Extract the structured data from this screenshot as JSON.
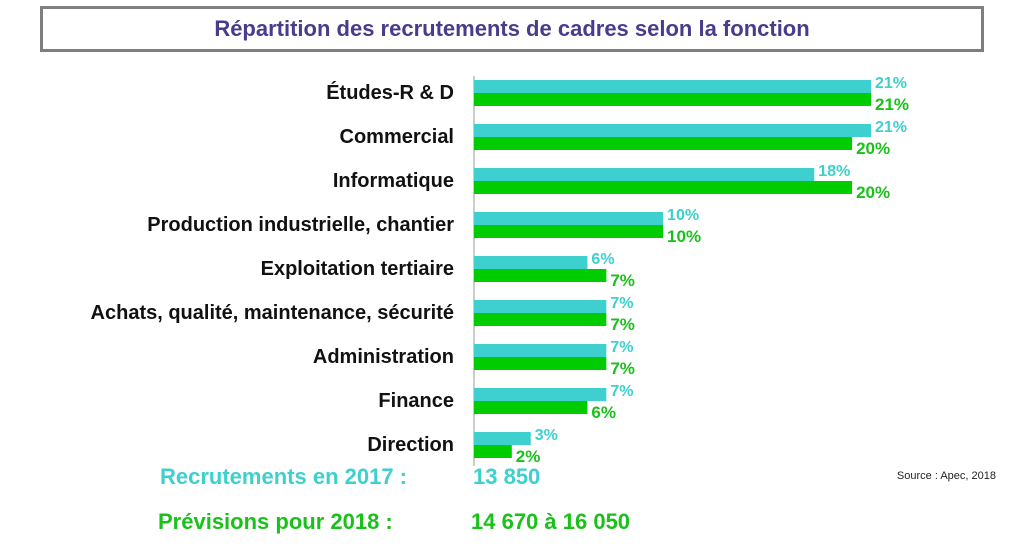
{
  "colors": {
    "series_2017": "#3ecfcf",
    "series_2018": "#00cc00",
    "title_text": "#4a3c8c",
    "title_border": "#7f7f7f"
  },
  "chart_data": {
    "type": "bar",
    "orientation": "horizontal",
    "title": "Répartition des recrutements de cadres selon la fonction",
    "categories": [
      "Études-R & D",
      "Commercial",
      "Informatique",
      "Production industrielle, chantier",
      "Exploitation tertiaire",
      "Achats, qualité, maintenance, sécurité",
      "Administration",
      "Finance",
      "Direction"
    ],
    "series": [
      {
        "name": "Recrutements en 2017",
        "values": [
          21,
          21,
          18,
          10,
          6,
          7,
          7,
          7,
          3
        ]
      },
      {
        "name": "Prévisions pour 2018",
        "values": [
          21,
          20,
          20,
          10,
          7,
          7,
          7,
          6,
          2
        ]
      }
    ],
    "value_suffix": "%",
    "xlim": [
      0,
      21
    ]
  },
  "summary": {
    "line_2017_label": "Recrutements en 2017 :",
    "line_2017_value": "13 850",
    "line_2018_label": "Prévisions pour 2018 :",
    "line_2018_value": "14 670 à 16 050"
  },
  "source": "Source : Apec, 2018"
}
